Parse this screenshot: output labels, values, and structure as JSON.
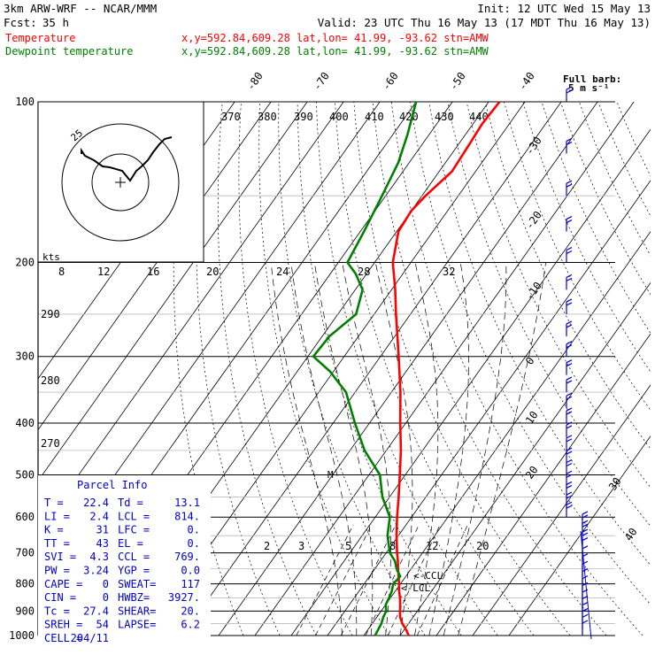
{
  "header": {
    "model": "3km ARW-WRF -- NCAR/MMM",
    "init": "Init: 12 UTC Wed 15 May 13",
    "fcst_label": "Fcst:",
    "fcst_value": "35 h",
    "valid": "Valid: 23 UTC Thu 16 May 13 (17 MDT Thu 16 May 13)"
  },
  "legend": [
    {
      "name": "Temperature",
      "info": "x,y=592.84,609.28   lat,lon= 41.99, -93.62  stn=AMW",
      "color": "#ff0000"
    },
    {
      "name": "Dewpoint temperature",
      "info": "x,y=592.84,609.28   lat,lon= 41.99, -93.62  stn=AMW",
      "color": "#008000"
    }
  ],
  "wind_legend": {
    "line1": "Full barb:",
    "line2": "5 m s⁻¹"
  },
  "parcel": {
    "title": "Parcel Info",
    "rows": [
      [
        "T   =",
        "22.4",
        "Td  =",
        "13.1"
      ],
      [
        "LI  =",
        "2.4",
        "LCL =",
        "814."
      ],
      [
        "K   =",
        "31",
        "LFC =",
        "0."
      ],
      [
        "TT  =",
        "43",
        "EL  =",
        "0."
      ],
      [
        "SVI =",
        "4.3",
        "CCL =",
        "769."
      ],
      [
        "PW  =",
        "3.24",
        "YGP =",
        "0.0"
      ],
      [
        "CAPE =",
        "0",
        "SWEAT=",
        "117"
      ],
      [
        "CIN  =",
        "0",
        "HWBZ=",
        "3927."
      ],
      [
        "Tc   =",
        "27.4",
        "SHEAR=",
        "20."
      ],
      [
        "SREH =",
        "54",
        "LAPSE=",
        "6.2"
      ],
      [
        "CELL =",
        "204/11",
        "",
        ""
      ]
    ]
  },
  "annotations": {
    "ccl": "<-CCL",
    "lcl": "<-LCL",
    "m": "M"
  },
  "hodograph": {
    "units": "kts",
    "ring_label": "25"
  },
  "chart_data": {
    "type": "line",
    "title": "",
    "pressure_ticks": [
      100,
      200,
      300,
      400,
      500,
      600,
      700,
      800,
      900,
      1000
    ],
    "isotherm_labels": [
      -80,
      -70,
      -60,
      -50,
      -40,
      -30,
      -20,
      -10,
      0,
      10,
      20,
      30,
      40
    ],
    "theta_labels": [
      370,
      380,
      390,
      400,
      410,
      420,
      430,
      440
    ],
    "mixing_ratio_labels": [
      2,
      3,
      5,
      8,
      12,
      20
    ],
    "hodo_speed_labels": [
      8,
      12,
      16,
      20,
      24,
      28,
      32
    ],
    "side_labels": [
      290,
      280,
      270
    ],
    "series": [
      {
        "name": "Temperature",
        "color": "#ff0000",
        "points": [
          {
            "p": 1000,
            "t": 22.4
          },
          {
            "p": 975,
            "t": 20.5
          },
          {
            "p": 950,
            "t": 18.3
          },
          {
            "p": 925,
            "t": 16.5
          },
          {
            "p": 900,
            "t": 15.2
          },
          {
            "p": 875,
            "t": 14.0
          },
          {
            "p": 850,
            "t": 12.6
          },
          {
            "p": 825,
            "t": 11.0
          },
          {
            "p": 800,
            "t": 9.6
          },
          {
            "p": 775,
            "t": 8.0
          },
          {
            "p": 750,
            "t": 6.4
          },
          {
            "p": 725,
            "t": 4.8
          },
          {
            "p": 700,
            "t": 3.0
          },
          {
            "p": 650,
            "t": -0.5
          },
          {
            "p": 600,
            "t": -4.0
          },
          {
            "p": 550,
            "t": -7.5
          },
          {
            "p": 500,
            "t": -11.5
          },
          {
            "p": 450,
            "t": -16.0
          },
          {
            "p": 400,
            "t": -21.5
          },
          {
            "p": 350,
            "t": -27.5
          },
          {
            "p": 300,
            "t": -35.0
          },
          {
            "p": 250,
            "t": -44.0
          },
          {
            "p": 225,
            "t": -49.0
          },
          {
            "p": 200,
            "t": -55.0
          },
          {
            "p": 175,
            "t": -59.5
          },
          {
            "p": 160,
            "t": -60.0
          },
          {
            "p": 150,
            "t": -59.0
          },
          {
            "p": 135,
            "t": -56.5
          },
          {
            "p": 120,
            "t": -57.0
          },
          {
            "p": 110,
            "t": -57.5
          },
          {
            "p": 100,
            "t": -57.0
          }
        ]
      },
      {
        "name": "Dewpoint temperature",
        "color": "#008000",
        "points": [
          {
            "p": 1000,
            "t": 13.1
          },
          {
            "p": 975,
            "t": 12.8
          },
          {
            "p": 950,
            "t": 12.5
          },
          {
            "p": 925,
            "t": 11.8
          },
          {
            "p": 900,
            "t": 11.4
          },
          {
            "p": 875,
            "t": 10.0
          },
          {
            "p": 850,
            "t": 9.6
          },
          {
            "p": 825,
            "t": 9.0
          },
          {
            "p": 800,
            "t": 8.0
          },
          {
            "p": 775,
            "t": 8.5
          },
          {
            "p": 750,
            "t": 6.0
          },
          {
            "p": 725,
            "t": 4.0
          },
          {
            "p": 700,
            "t": 1.0
          },
          {
            "p": 650,
            "t": -3.0
          },
          {
            "p": 600,
            "t": -6.0
          },
          {
            "p": 550,
            "t": -12.0
          },
          {
            "p": 500,
            "t": -17.0
          },
          {
            "p": 450,
            "t": -26.0
          },
          {
            "p": 400,
            "t": -34.0
          },
          {
            "p": 350,
            "t": -42.5
          },
          {
            "p": 320,
            "t": -51.0
          },
          {
            "p": 300,
            "t": -58.5
          },
          {
            "p": 275,
            "t": -58.0
          },
          {
            "p": 250,
            "t": -55.0
          },
          {
            "p": 225,
            "t": -58.0
          },
          {
            "p": 210,
            "t": -63.0
          },
          {
            "p": 200,
            "t": -67.5
          },
          {
            "p": 175,
            "t": -69.0
          },
          {
            "p": 150,
            "t": -71.0
          },
          {
            "p": 130,
            "t": -73.0
          },
          {
            "p": 115,
            "t": -76.0
          },
          {
            "p": 100,
            "t": -80.0
          }
        ]
      }
    ]
  }
}
